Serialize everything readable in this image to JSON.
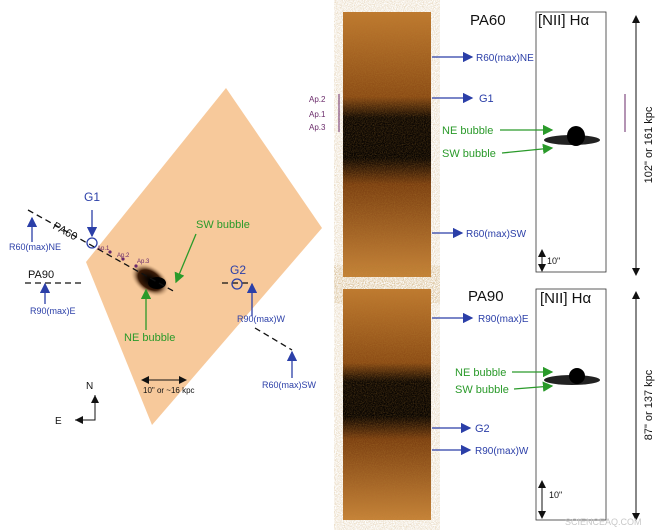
{
  "left_panel": {
    "G1": "G1",
    "PA60": "PA60",
    "R60_NE": "R60(max)NE",
    "ap1": "Ap.1",
    "ap2": "Ap.2",
    "ap3": "Ap.3",
    "SW_bubble": "SW bubble",
    "PA90": "PA90",
    "R90_E": "R90(max)E",
    "NE_bubble": "NE bubble",
    "G2": "G2",
    "R90_W": "R90(max)W",
    "R60_SW": "R60(max)SW",
    "scale": "10\" or ~16 kpc",
    "north": "N",
    "east": "E"
  },
  "top_panel": {
    "title_left": "PA60",
    "title_right": "[NII] Hα",
    "R60_NE": "R60(max)NE",
    "G1": "G1",
    "ap2": "Ap.2",
    "ap1": "Ap.1",
    "ap3": "Ap.3",
    "NE_bubble": "NE bubble",
    "SW_bubble": "SW bubble",
    "R60_SW": "R60(max)SW",
    "scale": "10\"",
    "extent": "102\" or 161 kpc"
  },
  "bottom_panel": {
    "title_left": "PA90",
    "title_right": "[NII] Hα",
    "R90_E": "R90(max)E",
    "NE_bubble": "NE bubble",
    "SW_bubble": "SW bubble",
    "G2": "G2",
    "R90_W": "R90(max)W",
    "scale": "10\"",
    "extent": "87\" or 137 kpc"
  },
  "watermark": "SCIENCEAQ.COM"
}
